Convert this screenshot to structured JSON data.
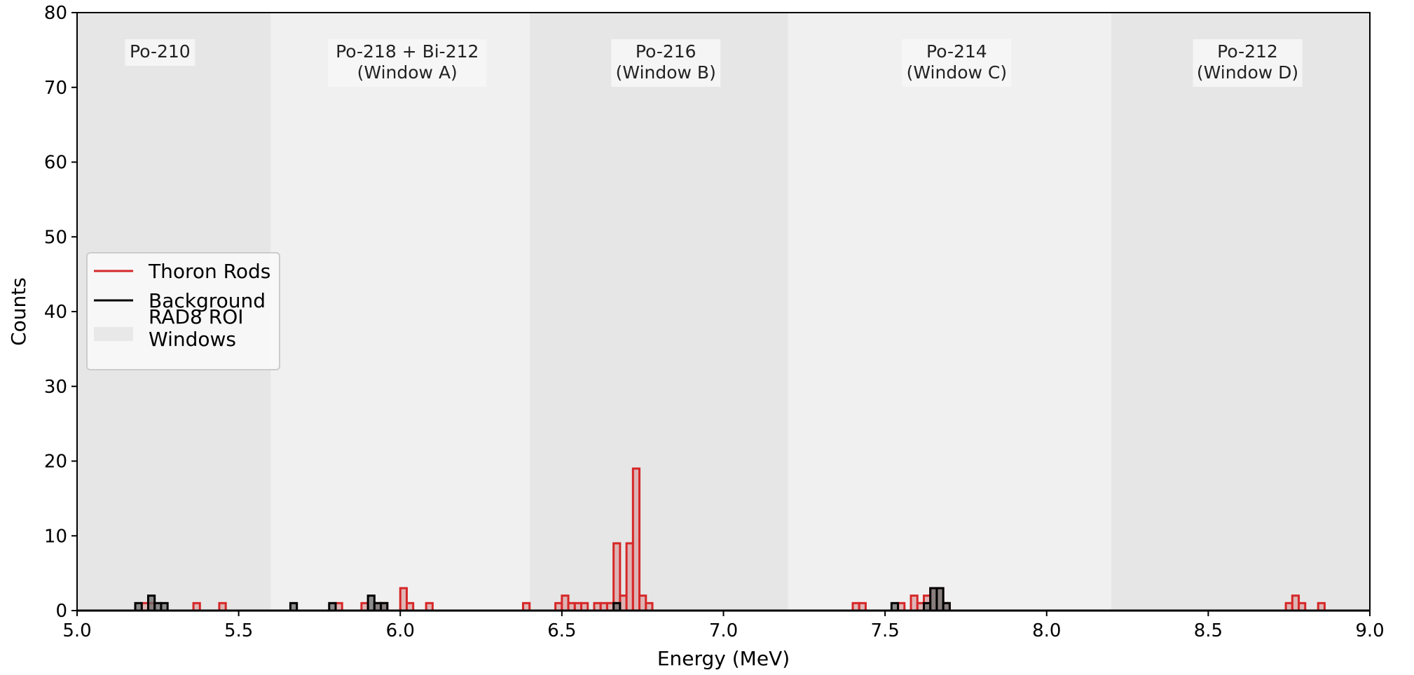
{
  "chart_data": {
    "type": "histogram",
    "xlabel": "Energy (MeV)",
    "ylabel": "Counts",
    "xlim": [
      5.0,
      9.0
    ],
    "ylim": [
      0,
      80
    ],
    "xticks": [
      "5.0",
      "5.5",
      "6.0",
      "6.5",
      "7.0",
      "7.5",
      "8.0",
      "8.5",
      "9.0"
    ],
    "yticks": [
      "0",
      "10",
      "20",
      "30",
      "40",
      "50",
      "60",
      "70",
      "80"
    ],
    "bin_width": 0.02,
    "grid": false,
    "legend": {
      "placement": "center-left",
      "entries": [
        {
          "label": "Thoron Rods",
          "color": "#d62728",
          "kind": "line"
        },
        {
          "label": "Background",
          "color": "#000000",
          "kind": "line"
        },
        {
          "label": "RAD8 ROI\nWindows",
          "color": "#d9d9d9",
          "kind": "patch"
        }
      ]
    },
    "regions": [
      {
        "label": "Po-210",
        "x_start": 5.0,
        "x_end": 5.6,
        "shade": "#e6e6e6"
      },
      {
        "label": "Po-218 + Bi-212\n(Window A)",
        "x_start": 5.6,
        "x_end": 6.4,
        "shade": "#f0f0f0"
      },
      {
        "label": "Po-216\n(Window B)",
        "x_start": 6.4,
        "x_end": 7.2,
        "shade": "#e6e6e6"
      },
      {
        "label": "Po-214\n(Window C)",
        "x_start": 7.2,
        "x_end": 8.2,
        "shade": "#f0f0f0"
      },
      {
        "label": "Po-212\n(Window D)",
        "x_start": 8.2,
        "x_end": 9.0,
        "shade": "#e6e6e6"
      }
    ],
    "series": [
      {
        "name": "Thoron Rods",
        "color": "#d62728",
        "fill": "#d9a3a3",
        "bins": [
          {
            "x": 5.2,
            "y": 1
          },
          {
            "x": 5.22,
            "y": 1
          },
          {
            "x": 5.36,
            "y": 1
          },
          {
            "x": 5.44,
            "y": 1
          },
          {
            "x": 5.8,
            "y": 1
          },
          {
            "x": 5.88,
            "y": 1
          },
          {
            "x": 5.92,
            "y": 1
          },
          {
            "x": 5.94,
            "y": 1
          },
          {
            "x": 6.0,
            "y": 3
          },
          {
            "x": 6.02,
            "y": 1
          },
          {
            "x": 6.08,
            "y": 1
          },
          {
            "x": 6.38,
            "y": 1
          },
          {
            "x": 6.48,
            "y": 1
          },
          {
            "x": 6.5,
            "y": 2
          },
          {
            "x": 6.52,
            "y": 1
          },
          {
            "x": 6.54,
            "y": 1
          },
          {
            "x": 6.56,
            "y": 1
          },
          {
            "x": 6.6,
            "y": 1
          },
          {
            "x": 6.62,
            "y": 1
          },
          {
            "x": 6.64,
            "y": 1
          },
          {
            "x": 6.66,
            "y": 9
          },
          {
            "x": 6.68,
            "y": 2
          },
          {
            "x": 6.7,
            "y": 9
          },
          {
            "x": 6.72,
            "y": 19
          },
          {
            "x": 6.74,
            "y": 2
          },
          {
            "x": 6.76,
            "y": 1
          },
          {
            "x": 7.4,
            "y": 1
          },
          {
            "x": 7.42,
            "y": 1
          },
          {
            "x": 7.54,
            "y": 1
          },
          {
            "x": 7.58,
            "y": 2
          },
          {
            "x": 7.6,
            "y": 1
          },
          {
            "x": 7.62,
            "y": 2
          },
          {
            "x": 7.64,
            "y": 3
          },
          {
            "x": 7.66,
            "y": 3
          },
          {
            "x": 7.68,
            "y": 1
          },
          {
            "x": 8.74,
            "y": 1
          },
          {
            "x": 8.76,
            "y": 2
          },
          {
            "x": 8.78,
            "y": 1
          },
          {
            "x": 8.84,
            "y": 1
          }
        ]
      },
      {
        "name": "Background",
        "color": "#000000",
        "fill": "#6b6b6b",
        "bins": [
          {
            "x": 5.18,
            "y": 1
          },
          {
            "x": 5.22,
            "y": 2
          },
          {
            "x": 5.24,
            "y": 1
          },
          {
            "x": 5.26,
            "y": 1
          },
          {
            "x": 5.66,
            "y": 1
          },
          {
            "x": 5.78,
            "y": 1
          },
          {
            "x": 5.9,
            "y": 2
          },
          {
            "x": 5.92,
            "y": 1
          },
          {
            "x": 5.94,
            "y": 1
          },
          {
            "x": 6.66,
            "y": 1
          },
          {
            "x": 7.52,
            "y": 1
          },
          {
            "x": 7.62,
            "y": 1
          },
          {
            "x": 7.64,
            "y": 3
          },
          {
            "x": 7.66,
            "y": 3
          },
          {
            "x": 7.68,
            "y": 1
          }
        ]
      }
    ]
  }
}
